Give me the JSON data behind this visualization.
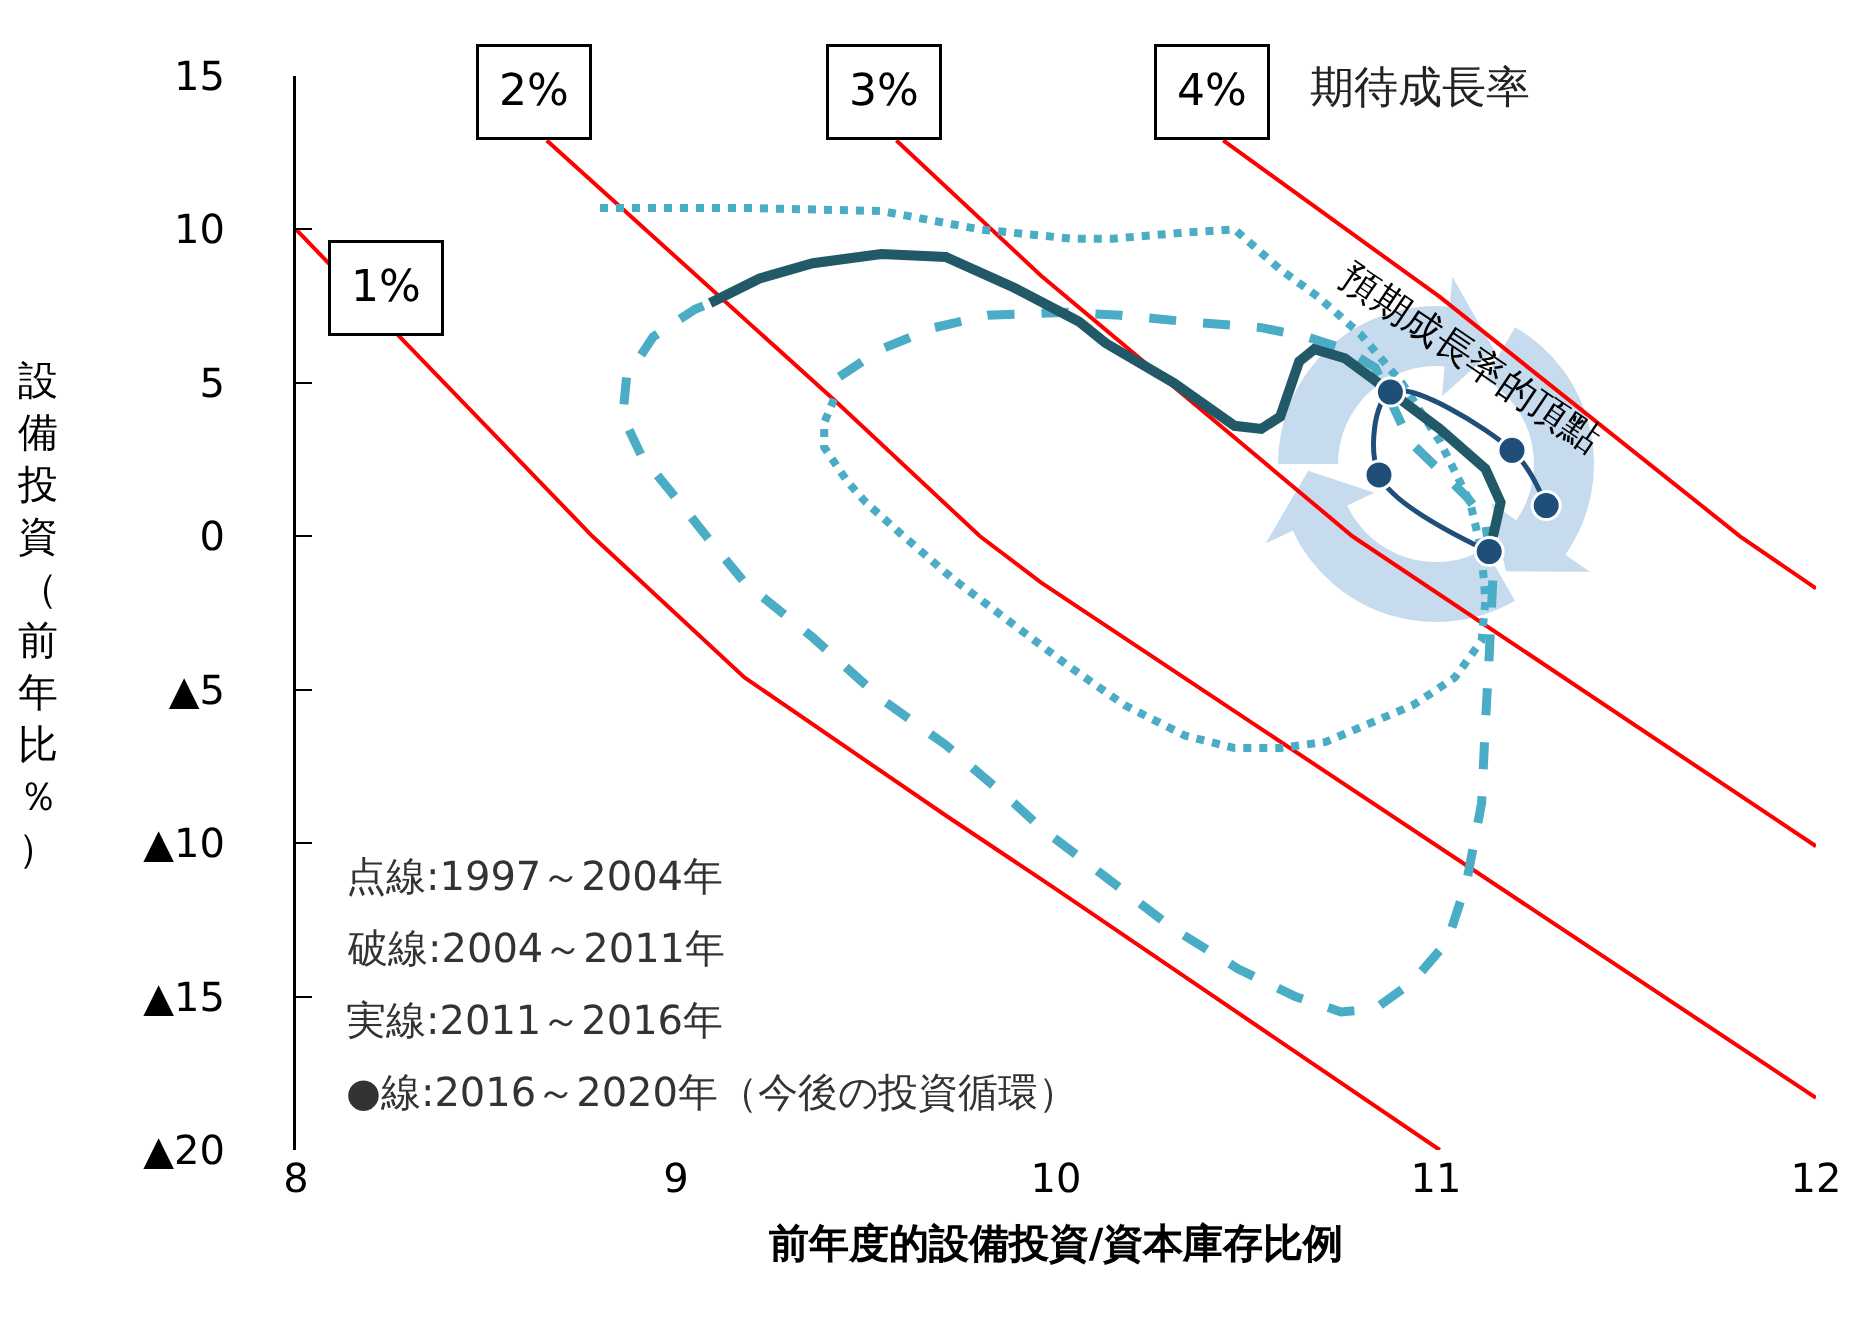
{
  "chart_data": {
    "type": "line",
    "xlabel": "前年度的設備投資/資本庫存比例",
    "ylabel": "設備投資（前年比％）",
    "xlim": [
      8,
      12
    ],
    "xticks": [
      8,
      9,
      10,
      11,
      12
    ],
    "ylim": [
      -20,
      15
    ],
    "yticks": [
      {
        "value": -20,
        "label": "▲20"
      },
      {
        "value": -15,
        "label": "▲15"
      },
      {
        "value": -10,
        "label": "▲10"
      },
      {
        "value": -5,
        "label": "▲5"
      },
      0,
      5,
      10,
      15
    ],
    "grid": false,
    "legend": false,
    "series": [
      {
        "name": "1%",
        "color": "#ff0000",
        "line_style": "solid",
        "marker": "none",
        "x": [
          8,
          8.78,
          9.18,
          9.71,
          10.0,
          11.01
        ],
        "values": [
          10,
          0,
          -4.6,
          -9.1,
          -11.5,
          -20
        ]
      },
      {
        "name": "2%",
        "color": "#ff0000",
        "line_style": "solid",
        "marker": "none",
        "x": [
          8.66,
          9.42,
          9.8,
          9.96,
          12
        ],
        "values": [
          12.9,
          4.4,
          0,
          -1.5,
          -18.3
        ]
      },
      {
        "name": "3%",
        "color": "#ff0000",
        "line_style": "solid",
        "marker": "none",
        "x": [
          9.58,
          9.96,
          10.78,
          12
        ],
        "values": [
          12.9,
          8.5,
          0,
          -10.1
        ]
      },
      {
        "name": "4%",
        "color": "#ff0000",
        "line_style": "solid",
        "marker": "none",
        "x": [
          10.44,
          11.01,
          11.8,
          12
        ],
        "values": [
          12.9,
          7.8,
          0,
          -1.7
        ]
      },
      {
        "color": "#4bacc6",
        "line_style": "dotted",
        "marker": "none",
        "x": [
          8.8,
          9.18,
          9.54,
          9.8,
          10.04,
          10.15,
          10.34,
          10.47,
          10.59,
          10.69,
          10.8,
          10.91,
          11.01,
          11.09,
          11.12,
          11.13,
          11.12,
          11.05,
          10.94,
          10.71,
          10.59,
          10.47,
          10.34,
          10.18,
          10.03,
          9.88,
          9.73,
          9.59,
          9.5,
          9.45,
          9.39,
          9.39,
          9.42
        ],
        "values": [
          10.7,
          10.7,
          10.6,
          10.0,
          9.7,
          9.7,
          9.9,
          10.0,
          8.7,
          7.8,
          6.6,
          5.0,
          3.1,
          1.1,
          -0.5,
          -2.1,
          -3.4,
          -4.6,
          -5.5,
          -6.7,
          -6.9,
          -6.9,
          -6.5,
          -5.5,
          -4.2,
          -2.8,
          -1.4,
          0.1,
          1.1,
          1.8,
          2.9,
          3.7,
          4.6
        ]
      },
      {
        "color": "#4bacc6",
        "line_style": "dashed",
        "marker": "none",
        "x": [
          9.43,
          9.54,
          9.68,
          9.82,
          10.03,
          10.17,
          10.34,
          10.54,
          10.66,
          10.76,
          10.84,
          10.93,
          11.08,
          11.13,
          11.15,
          11.14,
          11.13,
          11.12,
          11.08,
          11.03,
          10.94,
          10.84,
          10.75,
          10.63,
          10.48,
          10.31,
          10.13,
          9.96,
          9.89,
          9.71,
          9.54,
          9.36,
          9.18,
          9.08,
          9.01,
          8.91,
          8.86,
          8.87,
          8.94,
          9.05,
          9.09
        ],
        "values": [
          5.2,
          6.1,
          6.8,
          7.2,
          7.3,
          7.2,
          7.0,
          6.8,
          6.5,
          6.1,
          5.5,
          3.1,
          1.3,
          0.5,
          -1.3,
          -3.9,
          -6.1,
          -8.7,
          -11.3,
          -13.2,
          -14.5,
          -15.4,
          -15.5,
          -15.0,
          -14.1,
          -12.8,
          -11.1,
          -9.5,
          -8.7,
          -6.8,
          -5.3,
          -3.3,
          -1.5,
          0,
          1.1,
          2.6,
          3.9,
          5.2,
          6.5,
          7.4,
          7.6
        ]
      },
      {
        "color": "#215968",
        "line_style": "solid",
        "marker": "none",
        "x": [
          9.09,
          9.22,
          9.36,
          9.54,
          9.71,
          9.89,
          10.06,
          10.13,
          10.31,
          10.47,
          10.54,
          10.59,
          10.64,
          10.68,
          10.76,
          10.87,
          11.01,
          11.13,
          11.17,
          11.15
        ],
        "values": [
          7.6,
          8.4,
          8.9,
          9.2,
          9.1,
          8.1,
          7.0,
          6.3,
          5.0,
          3.6,
          3.5,
          3.9,
          5.7,
          6.1,
          5.8,
          4.8,
          3.5,
          2.2,
          1.1,
          0
        ]
      },
      {
        "color": "#1f4e79",
        "line_style": "solid",
        "marker": "circle",
        "x": [
          11.14,
          10.85,
          10.88,
          11.2,
          11.29
        ],
        "values": [
          -0.5,
          2.0,
          4.7,
          2.8,
          1.0
        ]
      }
    ],
    "annotations": [
      "期待成長率",
      "預期成長率的頂點",
      "点線:1997～2004年",
      "破線:2004～2011年",
      "実線:2011～2016年",
      "●線:2016～2020年（今後の投資循環）"
    ]
  }
}
